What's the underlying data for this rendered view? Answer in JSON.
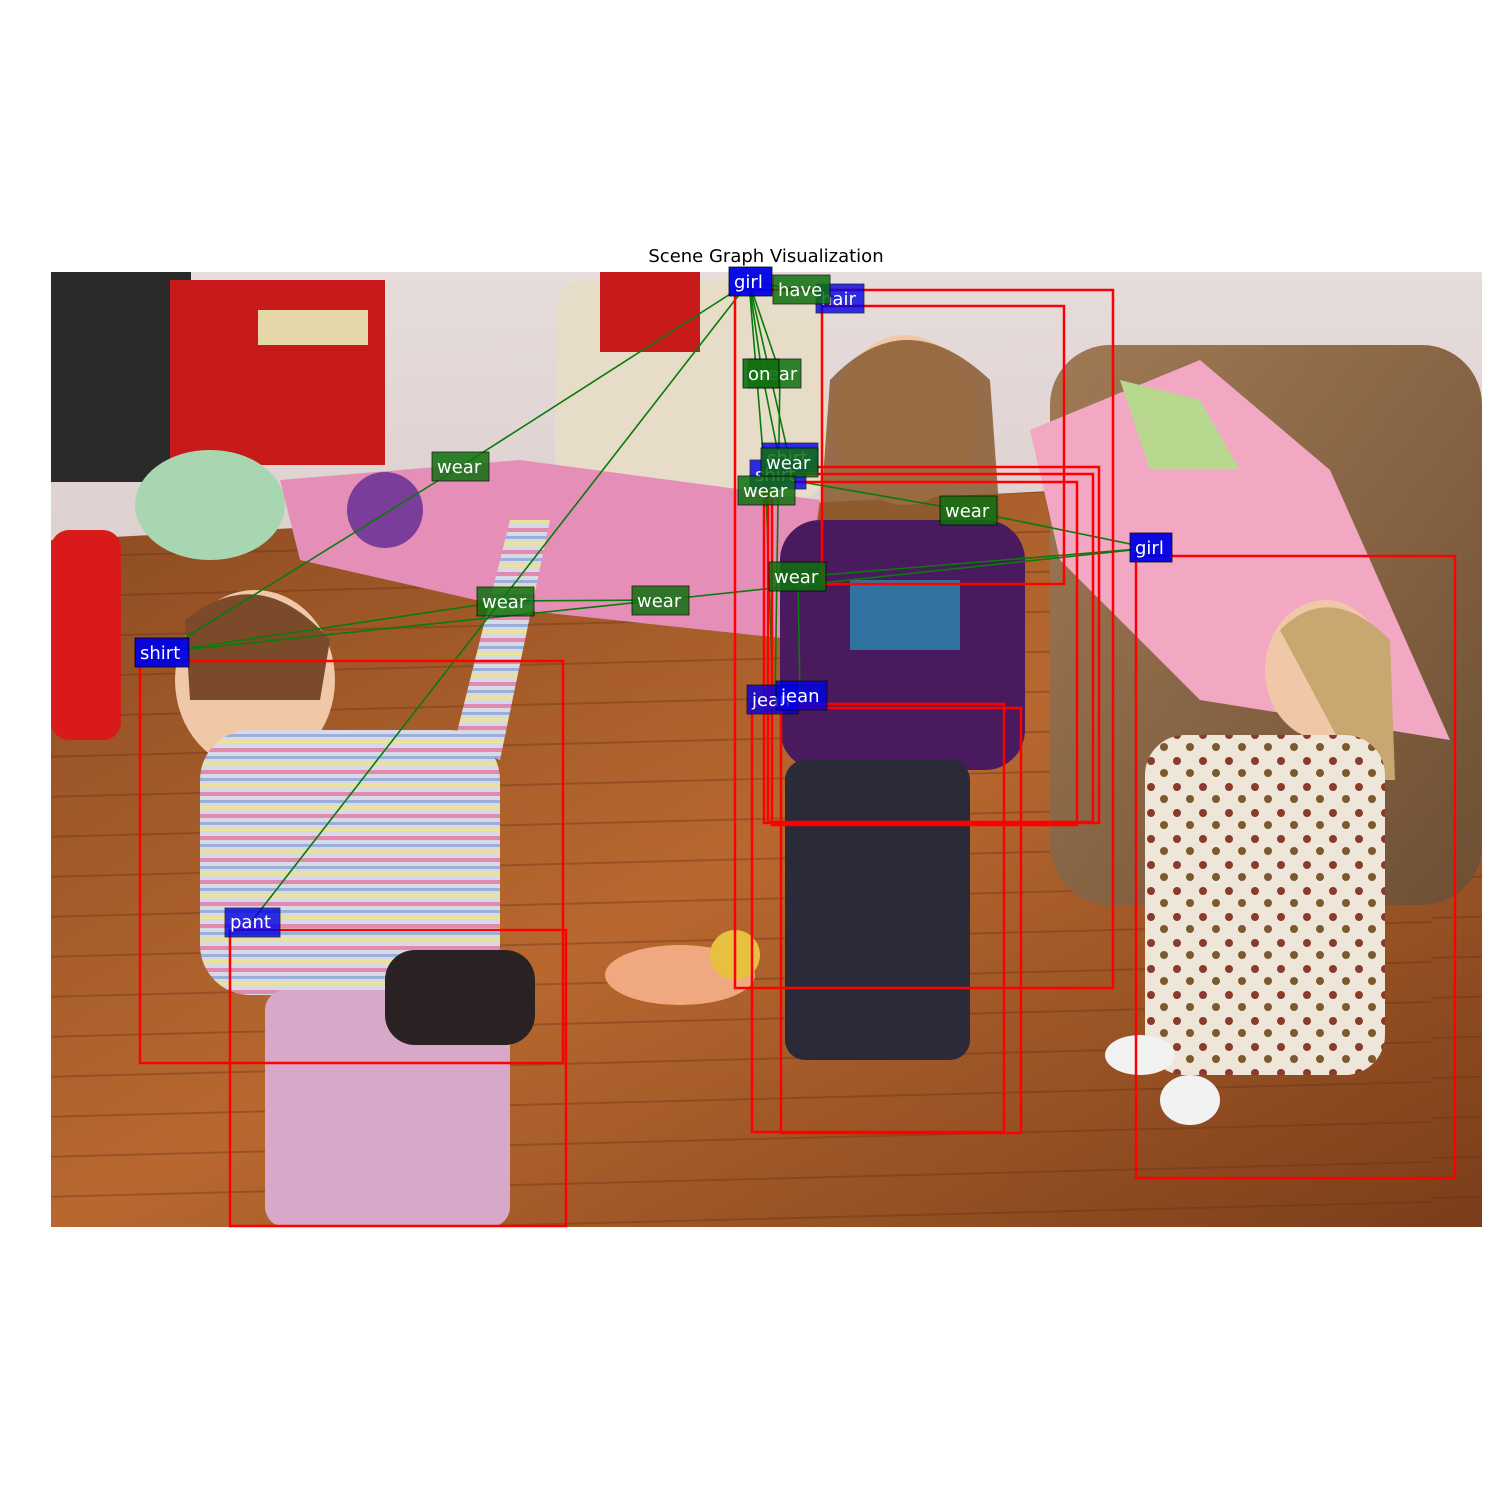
{
  "title": "Scene Graph Visualization",
  "colors": {
    "object_box": "#ff0000",
    "object_label_bg": "#0000e6",
    "relation_label_bg": "#107010",
    "edge": "#0a7a0a"
  },
  "objects": [
    {
      "name": "girl"
    },
    {
      "name": "hair"
    },
    {
      "name": "shirt"
    },
    {
      "name": "shirt"
    },
    {
      "name": "shirt"
    },
    {
      "name": "jean"
    },
    {
      "name": "jean"
    },
    {
      "name": "girl"
    },
    {
      "name": "shirt"
    },
    {
      "name": "pant"
    }
  ],
  "relations": [
    {
      "predicate": "have"
    },
    {
      "predicate": "on"
    },
    {
      "predicate": "wear"
    },
    {
      "predicate": "wear"
    },
    {
      "predicate": "wear"
    },
    {
      "predicate": "wear"
    },
    {
      "predicate": "wear"
    },
    {
      "predicate": "wear"
    },
    {
      "predicate": "wear"
    },
    {
      "predicate": "wear"
    },
    {
      "predicate": "wear"
    }
  ]
}
